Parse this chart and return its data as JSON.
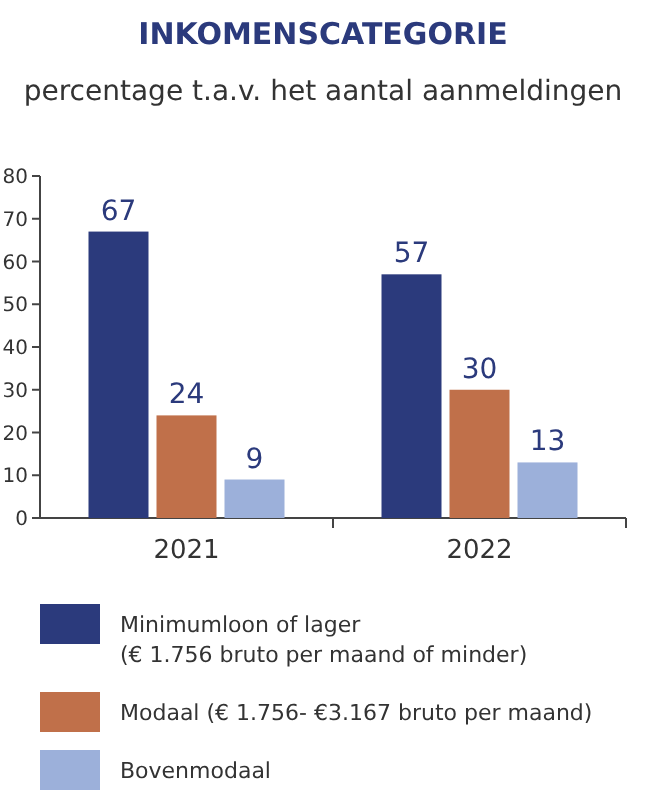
{
  "chart_data": {
    "type": "bar",
    "title": "INKOMENSCATEGORIE",
    "subtitle": "percentage t.a.v. het aantal aanmeldingen",
    "categories": [
      "2021",
      "2022"
    ],
    "series": [
      {
        "name": "Minimumloon of lager\n(€ 1.756 bruto per maand of minder)",
        "color": "#2b3a7c",
        "values": [
          67,
          57
        ]
      },
      {
        "name": "Modaal (€ 1.756- €3.167 bruto per maand)",
        "color": "#c0704a",
        "values": [
          24,
          30
        ]
      },
      {
        "name": "Bovenmodaal",
        "color": "#9cb0da",
        "values": [
          9,
          13
        ]
      }
    ],
    "ylim": [
      0,
      80
    ],
    "yticks": [
      0,
      10,
      20,
      30,
      40,
      50,
      60,
      70,
      80
    ],
    "data_labels": true,
    "legend": "bottom"
  }
}
